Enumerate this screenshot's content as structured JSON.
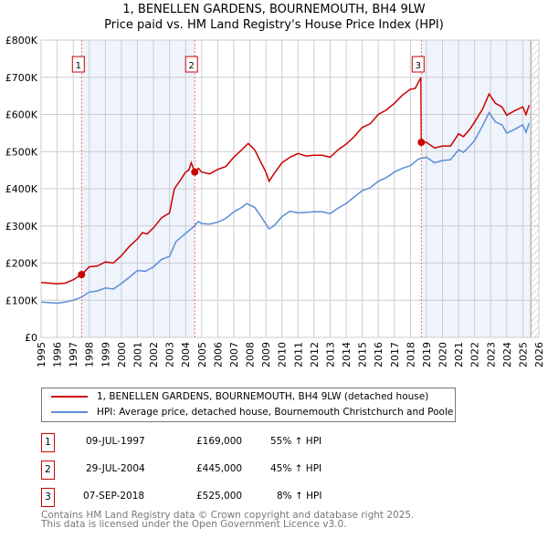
{
  "chart_data": {
    "type": "line",
    "title": "1, BENELLEN GARDENS, BOURNEMOUTH, BH4 9LW",
    "subtitle": "Price paid vs. HM Land Registry's House Price Index (HPI)",
    "xlim": [
      1995,
      2026
    ],
    "ylim": [
      0,
      800000
    ],
    "x_ticks": [
      "1995",
      "1996",
      "1997",
      "1998",
      "1999",
      "2000",
      "2001",
      "2002",
      "2003",
      "2004",
      "2005",
      "2006",
      "2007",
      "2008",
      "2009",
      "2010",
      "2011",
      "2012",
      "2013",
      "2014",
      "2015",
      "2016",
      "2017",
      "2018",
      "2019",
      "2020",
      "2021",
      "2022",
      "2023",
      "2024",
      "2025",
      "2026"
    ],
    "y_ticks": [
      {
        "v": 0,
        "label": "£0"
      },
      {
        "v": 100000,
        "label": "£100K"
      },
      {
        "v": 200000,
        "label": "£200K"
      },
      {
        "v": 300000,
        "label": "£300K"
      },
      {
        "v": 400000,
        "label": "£400K"
      },
      {
        "v": 500000,
        "label": "£500K"
      },
      {
        "v": 600000,
        "label": "£600K"
      },
      {
        "v": 700000,
        "label": "£700K"
      },
      {
        "v": 800000,
        "label": "£800K"
      }
    ],
    "grid": true,
    "shaded_ranges": [
      [
        1997.52,
        2004.57
      ],
      [
        2018.68,
        2025.5
      ]
    ],
    "hatched_from": 2025.5,
    "series": [
      {
        "name": "1, BENELLEN GARDENS, BOURNEMOUTH, BH4 9LW (detached house)",
        "color": "#cc0000",
        "x": [
          1995,
          1996,
          1996.5,
          1997,
          1997.52,
          1998,
          1998.5,
          1999,
          1999.5,
          2000,
          2000.5,
          2001,
          2001.3,
          2001.6,
          2002,
          2002.5,
          2003,
          2003.3,
          2003.7,
          2004,
          2004.2,
          2004.35,
          2004.57,
          2004.8,
          2005,
          2005.5,
          2006,
          2006.5,
          2007,
          2007.5,
          2007.9,
          2008.3,
          2008.7,
          2009,
          2009.2,
          2009.5,
          2010,
          2010.5,
          2011,
          2011.5,
          2012,
          2012.5,
          2013,
          2013.5,
          2014,
          2014.5,
          2015,
          2015.5,
          2016,
          2016.5,
          2017,
          2017.5,
          2018,
          2018.3,
          2018.6,
          2018.65,
          2018.68,
          2019,
          2019.5,
          2020,
          2020.5,
          2021,
          2021.3,
          2021.7,
          2022,
          2022.5,
          2022.9,
          2023.3,
          2023.7,
          2024,
          2024.5,
          2025,
          2025.2,
          2025.4
        ],
        "y": [
          148,
          144,
          146,
          155,
          169,
          190,
          192,
          203,
          200,
          220,
          245,
          265,
          282,
          278,
          295,
          322,
          335,
          400,
          425,
          445,
          450,
          470,
          445,
          455,
          445,
          440,
          452,
          460,
          485,
          505,
          522,
          505,
          470,
          445,
          420,
          440,
          470,
          485,
          495,
          488,
          490,
          490,
          485,
          505,
          520,
          540,
          565,
          575,
          600,
          612,
          630,
          652,
          668,
          670,
          695,
          700,
          525,
          525,
          510,
          515,
          515,
          548,
          540,
          560,
          580,
          615,
          655,
          630,
          620,
          598,
          610,
          620,
          600,
          625
        ]
      },
      {
        "name": "HPI: Average price, detached house, Bournemouth Christchurch and Poole",
        "color": "#5b8dd6",
        "x": [
          1995,
          1996,
          1996.5,
          1997,
          1997.5,
          1998,
          1998.5,
          1999,
          1999.5,
          2000,
          2000.5,
          2001,
          2001.5,
          2002,
          2002.5,
          2003,
          2003.4,
          2004,
          2004.5,
          2004.8,
          2005,
          2005.5,
          2006,
          2006.5,
          2007,
          2007.5,
          2007.8,
          2008.3,
          2008.7,
          2009.2,
          2009.5,
          2010,
          2010.5,
          2011,
          2012,
          2012.5,
          2013,
          2013.5,
          2014,
          2014.5,
          2015,
          2015.5,
          2016,
          2016.5,
          2017,
          2017.5,
          2018,
          2018.5,
          2019,
          2019.5,
          2020,
          2020.5,
          2021,
          2021.3,
          2021.7,
          2022,
          2022.5,
          2022.9,
          2023.3,
          2023.7,
          2024,
          2024.5,
          2025,
          2025.2,
          2025.4
        ],
        "y": [
          95,
          92,
          95,
          100,
          108,
          122,
          125,
          133,
          130,
          145,
          162,
          180,
          178,
          190,
          210,
          218,
          258,
          280,
          298,
          312,
          306,
          305,
          310,
          320,
          338,
          350,
          360,
          350,
          325,
          292,
          300,
          325,
          340,
          335,
          338,
          338,
          333,
          348,
          360,
          378,
          395,
          403,
          420,
          430,
          445,
          455,
          462,
          480,
          485,
          470,
          476,
          478,
          505,
          498,
          515,
          530,
          570,
          605,
          580,
          572,
          550,
          560,
          572,
          552,
          577
        ]
      }
    ],
    "y_unit": "thousands GBP",
    "sales": [
      {
        "id": "1",
        "x": 1997.52,
        "y": 169,
        "date": "09-JUL-1997",
        "price": "£169,000",
        "hpi": "55% ↑ HPI"
      },
      {
        "id": "2",
        "x": 2004.57,
        "y": 445,
        "date": "29-JUL-2004",
        "price": "£445,000",
        "hpi": "45% ↑ HPI"
      },
      {
        "id": "3",
        "x": 2018.68,
        "y": 525,
        "date": "07-SEP-2018",
        "price": "£525,000",
        "hpi": "8% ↑ HPI"
      }
    ]
  },
  "footer": [
    "Contains HM Land Registry data © Crown copyright and database right 2025.",
    "This data is licensed under the Open Government Licence v3.0."
  ]
}
